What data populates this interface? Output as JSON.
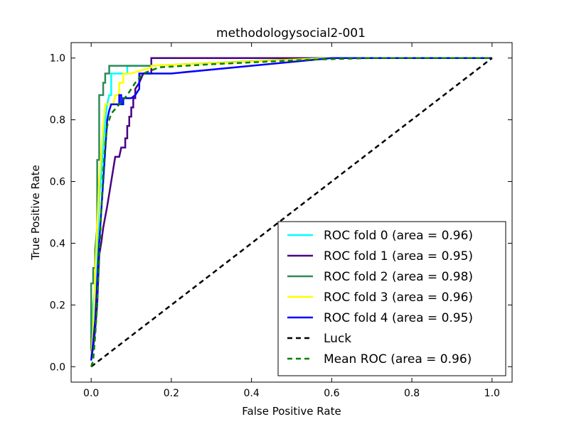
{
  "chart_data": {
    "type": "line",
    "title": "methodologysocial2-001",
    "xlabel": "False Positive Rate",
    "ylabel": "True Positive Rate",
    "xlim": [
      -0.05,
      1.05
    ],
    "ylim": [
      -0.05,
      1.05
    ],
    "xticks": [
      0.0,
      0.2,
      0.4,
      0.6,
      0.8,
      1.0
    ],
    "yticks": [
      0.0,
      0.2,
      0.4,
      0.6,
      0.8,
      1.0
    ],
    "xtick_labels": [
      "0.0",
      "0.2",
      "0.4",
      "0.6",
      "0.8",
      "1.0"
    ],
    "ytick_labels": [
      "0.0",
      "0.2",
      "0.4",
      "0.6",
      "0.8",
      "1.0"
    ],
    "grid": false,
    "legend_position": "lower-right",
    "series": [
      {
        "name": "ROC fold 0 (area = 0.96)",
        "color": "#00ffff",
        "dash": "solid",
        "points": [
          [
            0,
            0.03
          ],
          [
            0.005,
            0.2
          ],
          [
            0.01,
            0.26
          ],
          [
            0.015,
            0.35
          ],
          [
            0.02,
            0.55
          ],
          [
            0.025,
            0.62
          ],
          [
            0.03,
            0.72
          ],
          [
            0.035,
            0.8
          ],
          [
            0.04,
            0.85
          ],
          [
            0.045,
            0.88
          ],
          [
            0.05,
            0.88
          ],
          [
            0.05,
            0.95
          ],
          [
            0.09,
            0.95
          ],
          [
            0.09,
            0.975
          ],
          [
            0.15,
            0.975
          ],
          [
            0.15,
            1.0
          ],
          [
            1.0,
            1.0
          ]
        ]
      },
      {
        "name": "ROC fold 1 (area = 0.95)",
        "color": "#4b0082",
        "dash": "solid",
        "points": [
          [
            0,
            0.03
          ],
          [
            0.005,
            0.06
          ],
          [
            0.01,
            0.12
          ],
          [
            0.015,
            0.2
          ],
          [
            0.02,
            0.36
          ],
          [
            0.025,
            0.4
          ],
          [
            0.03,
            0.45
          ],
          [
            0.04,
            0.52
          ],
          [
            0.05,
            0.6
          ],
          [
            0.055,
            0.64
          ],
          [
            0.06,
            0.68
          ],
          [
            0.07,
            0.68
          ],
          [
            0.075,
            0.71
          ],
          [
            0.085,
            0.71
          ],
          [
            0.085,
            0.74
          ],
          [
            0.09,
            0.74
          ],
          [
            0.09,
            0.78
          ],
          [
            0.095,
            0.78
          ],
          [
            0.095,
            0.81
          ],
          [
            0.1,
            0.81
          ],
          [
            0.1,
            0.84
          ],
          [
            0.105,
            0.84
          ],
          [
            0.105,
            0.87
          ],
          [
            0.11,
            0.87
          ],
          [
            0.11,
            0.9
          ],
          [
            0.12,
            0.92
          ],
          [
            0.13,
            0.95
          ],
          [
            0.15,
            0.95
          ],
          [
            0.15,
            1.0
          ],
          [
            1.0,
            1.0
          ]
        ]
      },
      {
        "name": "ROC fold 2 (area = 0.98)",
        "color": "#2e8b57",
        "dash": "solid",
        "points": [
          [
            0,
            0.05
          ],
          [
            0,
            0.27
          ],
          [
            0.005,
            0.27
          ],
          [
            0.005,
            0.32
          ],
          [
            0.01,
            0.32
          ],
          [
            0.01,
            0.38
          ],
          [
            0.015,
            0.45
          ],
          [
            0.015,
            0.67
          ],
          [
            0.02,
            0.67
          ],
          [
            0.02,
            0.88
          ],
          [
            0.03,
            0.88
          ],
          [
            0.03,
            0.92
          ],
          [
            0.035,
            0.92
          ],
          [
            0.035,
            0.95
          ],
          [
            0.045,
            0.95
          ],
          [
            0.045,
            0.975
          ],
          [
            0.06,
            0.975
          ],
          [
            0.09,
            0.975
          ],
          [
            0.15,
            0.975
          ],
          [
            0.58,
            1.0
          ],
          [
            1.0,
            1.0
          ]
        ]
      },
      {
        "name": "ROC fold 3 (area = 0.96)",
        "color": "#ffff00",
        "dash": "solid",
        "points": [
          [
            0,
            0.03
          ],
          [
            0.005,
            0.12
          ],
          [
            0.01,
            0.3
          ],
          [
            0.02,
            0.6
          ],
          [
            0.03,
            0.78
          ],
          [
            0.035,
            0.85
          ],
          [
            0.055,
            0.85
          ],
          [
            0.06,
            0.88
          ],
          [
            0.07,
            0.88
          ],
          [
            0.07,
            0.92
          ],
          [
            0.08,
            0.92
          ],
          [
            0.08,
            0.95
          ],
          [
            0.1,
            0.95
          ],
          [
            0.15,
            0.97
          ],
          [
            0.15,
            0.975
          ],
          [
            0.6,
            1.0
          ],
          [
            1.0,
            1.0
          ]
        ]
      },
      {
        "name": "ROC fold 4 (area = 0.95)",
        "color": "#0000ff",
        "dash": "solid",
        "points": [
          [
            0,
            0.02
          ],
          [
            0.005,
            0.08
          ],
          [
            0.01,
            0.15
          ],
          [
            0.02,
            0.4
          ],
          [
            0.03,
            0.6
          ],
          [
            0.04,
            0.8
          ],
          [
            0.045,
            0.83
          ],
          [
            0.05,
            0.85
          ],
          [
            0.07,
            0.85
          ],
          [
            0.07,
            0.88
          ],
          [
            0.075,
            0.88
          ],
          [
            0.075,
            0.85
          ],
          [
            0.08,
            0.85
          ],
          [
            0.08,
            0.87
          ],
          [
            0.1,
            0.87
          ],
          [
            0.11,
            0.88
          ],
          [
            0.12,
            0.9
          ],
          [
            0.12,
            0.95
          ],
          [
            0.2,
            0.95
          ],
          [
            0.6,
            1.0
          ],
          [
            1.0,
            1.0
          ]
        ]
      },
      {
        "name": "Luck",
        "color": "#000000",
        "dash": "dashed",
        "points": [
          [
            0,
            0
          ],
          [
            1,
            1
          ]
        ]
      },
      {
        "name": "Mean ROC (area = 0.96)",
        "color": "#008000",
        "dash": "dashed",
        "points": [
          [
            0,
            0
          ],
          [
            0.005,
            0.02
          ],
          [
            0.01,
            0.1
          ],
          [
            0.015,
            0.2
          ],
          [
            0.02,
            0.35
          ],
          [
            0.025,
            0.5
          ],
          [
            0.03,
            0.63
          ],
          [
            0.035,
            0.72
          ],
          [
            0.04,
            0.78
          ],
          [
            0.05,
            0.82
          ],
          [
            0.07,
            0.85
          ],
          [
            0.09,
            0.88
          ],
          [
            0.11,
            0.92
          ],
          [
            0.13,
            0.95
          ],
          [
            0.17,
            0.97
          ],
          [
            0.3,
            0.98
          ],
          [
            0.55,
            0.995
          ],
          [
            0.7,
            1.0
          ],
          [
            1.0,
            1.0
          ]
        ]
      }
    ]
  }
}
